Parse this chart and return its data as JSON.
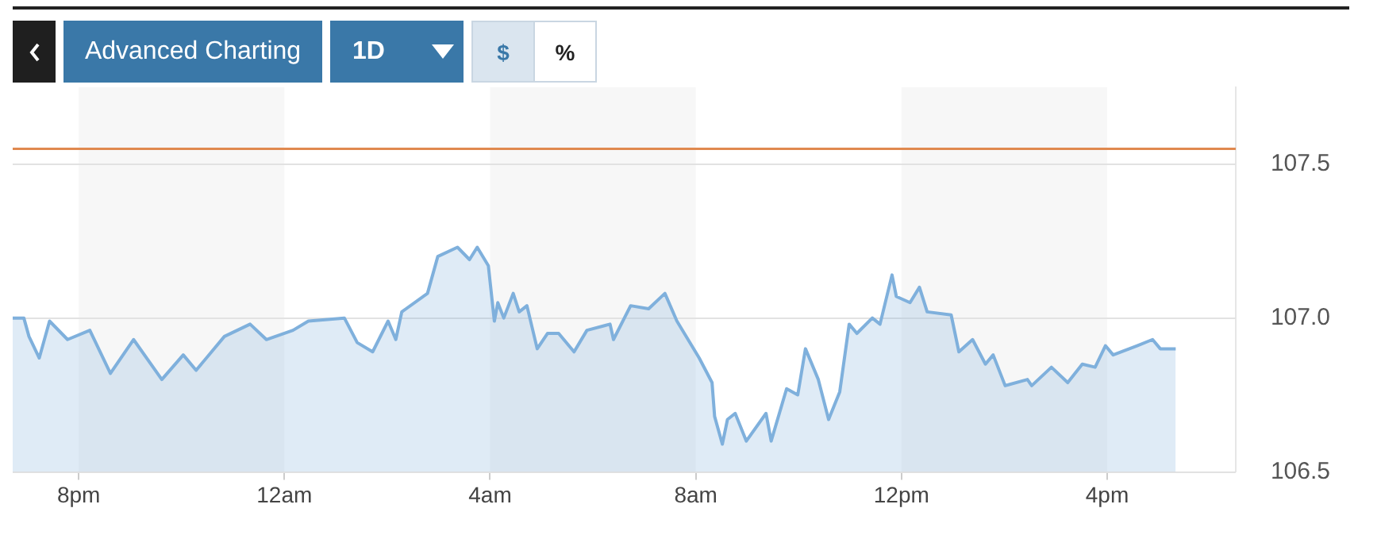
{
  "chart_data": {
    "type": "area",
    "annotations": [
      "Advanced Charting",
      "1D",
      "$",
      "%"
    ],
    "x": [
      "--01-01T18:43",
      "--01-01T18:56",
      "--01-01T19:02",
      "--01-01T19:14",
      "--01-01T19:26",
      "--01-01T19:47",
      "--01-01T20:13",
      "--01-01T20:37",
      "--01-01T21:04",
      "--01-01T21:37",
      "--01-01T22:02",
      "--01-01T22:17",
      "--01-01T22:50",
      "--01-01T23:20",
      "--01-01T23:39",
      "--01-02T00:10",
      "--01-02T00:28",
      "--01-02T01:10",
      "--01-02T01:25",
      "--01-02T01:43",
      "--01-02T02:01",
      "--01-02T02:10",
      "--01-02T02:17",
      "--01-02T02:47",
      "--01-02T02:59",
      "--01-02T03:22",
      "--01-02T03:36",
      "--01-02T03:45",
      "--01-02T03:58",
      "--01-02T04:05",
      "--01-02T04:09",
      "--01-02T04:16",
      "--01-02T04:27",
      "--01-02T04:34",
      "--01-02T04:43",
      "--01-02T04:55",
      "--01-02T05:07",
      "--01-02T05:20",
      "--01-02T05:38",
      "--01-02T05:53",
      "--01-02T06:20",
      "--01-02T06:24",
      "--01-02T06:44",
      "--01-02T07:05",
      "--01-02T07:24",
      "--01-02T07:38",
      "--01-02T08:04",
      "--01-02T08:19",
      "--01-02T08:22",
      "--01-02T08:31",
      "--01-02T08:37",
      "--01-02T08:46",
      "--01-02T08:59",
      "--01-02T09:22",
      "--01-02T09:28",
      "--01-02T09:46",
      "--01-02T09:59",
      "--01-02T10:08",
      "--01-02T10:23",
      "--01-02T10:35",
      "--01-02T10:48",
      "--01-02T10:59",
      "--01-02T11:08",
      "--01-02T11:26",
      "--01-02T11:35",
      "--01-02T11:49",
      "--01-02T11:54",
      "--01-02T12:10",
      "--01-02T12:21",
      "--01-02T12:30",
      "--01-02T12:58",
      "--01-02T13:07",
      "--01-02T13:23",
      "--01-02T13:38",
      "--01-02T13:47",
      "--01-02T14:01",
      "--01-02T14:27",
      "--01-02T14:32",
      "--01-02T14:55",
      "--01-02T15:14",
      "--01-02T15:31",
      "--01-02T15:46",
      "--01-02T15:58",
      "--01-02T16:07",
      "--01-02T16:35",
      "--01-02T16:53",
      "--01-02T17:02",
      "--01-02T17:20"
    ],
    "series": [
      {
        "color": "#7fb0dc",
        "values": [
          107.0,
          107.0,
          106.94,
          106.87,
          106.99,
          106.93,
          106.96,
          106.82,
          106.93,
          106.8,
          106.88,
          106.83,
          106.94,
          106.98,
          106.93,
          106.96,
          106.99,
          107.0,
          106.92,
          106.89,
          106.99,
          106.93,
          107.02,
          107.08,
          107.2,
          107.23,
          107.19,
          107.23,
          107.17,
          106.99,
          107.05,
          107.0,
          107.08,
          107.02,
          107.04,
          106.9,
          106.95,
          106.95,
          106.89,
          106.96,
          106.98,
          106.93,
          107.04,
          107.03,
          107.08,
          106.99,
          106.87,
          106.79,
          106.68,
          106.59,
          106.67,
          106.69,
          106.6,
          106.69,
          106.6,
          106.77,
          106.75,
          106.9,
          106.8,
          106.67,
          106.76,
          106.98,
          106.95,
          107.0,
          106.98,
          107.14,
          107.07,
          107.05,
          107.1,
          107.02,
          107.01,
          106.89,
          106.93,
          106.85,
          106.88,
          106.78,
          106.8,
          106.78,
          106.84,
          106.79,
          106.85,
          106.84,
          106.91,
          106.88,
          106.91,
          106.93,
          106.9,
          106.9
        ]
      }
    ],
    "xlim": [
      "--01-01T18:43",
      "--01-02T18:30"
    ],
    "xticks": [
      {
        "value": "--01-01T20:00",
        "label": "8pm"
      },
      {
        "value": "--01-02T00:00",
        "label": "12am"
      },
      {
        "value": "--01-02T04:00",
        "label": "4am"
      },
      {
        "value": "--01-02T08:00",
        "label": "8am"
      },
      {
        "value": "--01-02T12:00",
        "label": "12pm"
      },
      {
        "value": "--01-02T16:00",
        "label": "4pm"
      }
    ],
    "ylim": [
      106.5,
      107.75
    ],
    "yticks": [
      106.5,
      {
        "value": 107,
        "label": "107.0"
      },
      107.5
    ],
    "ref_lines": [
      {
        "axis": "y",
        "value": 107.55,
        "color": "#e0894f"
      }
    ],
    "bands": [
      {
        "axis": "x",
        "from": "--01-01T20:00",
        "to": "--01-02T00:00",
        "color": "#f7f7f7"
      },
      {
        "axis": "x",
        "from": "--01-02T04:00",
        "to": "--01-02T08:00",
        "color": "#f7f7f7"
      },
      {
        "axis": "x",
        "from": "--01-02T12:00",
        "to": "--01-02T16:00",
        "color": "#f7f7f7"
      }
    ],
    "grid": "y",
    "marker": "none",
    "line_style": "solid",
    "legend": false
  }
}
